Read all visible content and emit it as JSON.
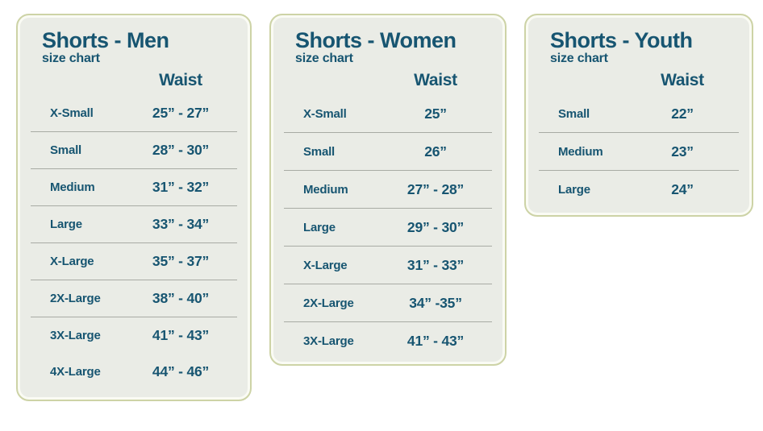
{
  "theme": {
    "page_bg": "#ffffff",
    "card_bg": "#eaece6",
    "card_border": "#cdd3a6",
    "text_color": "#175571",
    "divider_color": "#a8aba4"
  },
  "chart_data": [
    {
      "type": "table",
      "title": "Shorts - Men",
      "subtitle": "size chart",
      "value_column": "Waist",
      "rows": [
        {
          "size": "X-Small",
          "waist": "25” - 27”"
        },
        {
          "size": "Small",
          "waist": "28” - 30”"
        },
        {
          "size": "Medium",
          "waist": "31” - 32”"
        },
        {
          "size": "Large",
          "waist": "33” - 34”"
        },
        {
          "size": "X-Large",
          "waist": "35” - 37”"
        },
        {
          "size": "2X-Large",
          "waist": "38” - 40”"
        },
        {
          "size": "3X-Large",
          "waist": "41” - 43”"
        },
        {
          "size": "4X-Large",
          "waist": "44” - 46”"
        }
      ]
    },
    {
      "type": "table",
      "title": "Shorts - Women",
      "subtitle": "size chart",
      "value_column": "Waist",
      "rows": [
        {
          "size": "X-Small",
          "waist": "25”"
        },
        {
          "size": "Small",
          "waist": "26”"
        },
        {
          "size": "Medium",
          "waist": "27” - 28”"
        },
        {
          "size": "Large",
          "waist": "29” - 30”"
        },
        {
          "size": "X-Large",
          "waist": "31” - 33”"
        },
        {
          "size": "2X-Large",
          "waist": "34” -35”"
        },
        {
          "size": "3X-Large",
          "waist": "41” - 43”"
        }
      ]
    },
    {
      "type": "table",
      "title": "Shorts - Youth",
      "subtitle": "size chart",
      "value_column": "Waist",
      "rows": [
        {
          "size": "Small",
          "waist": "22”"
        },
        {
          "size": "Medium",
          "waist": "23”"
        },
        {
          "size": "Large",
          "waist": "24”"
        }
      ]
    }
  ]
}
